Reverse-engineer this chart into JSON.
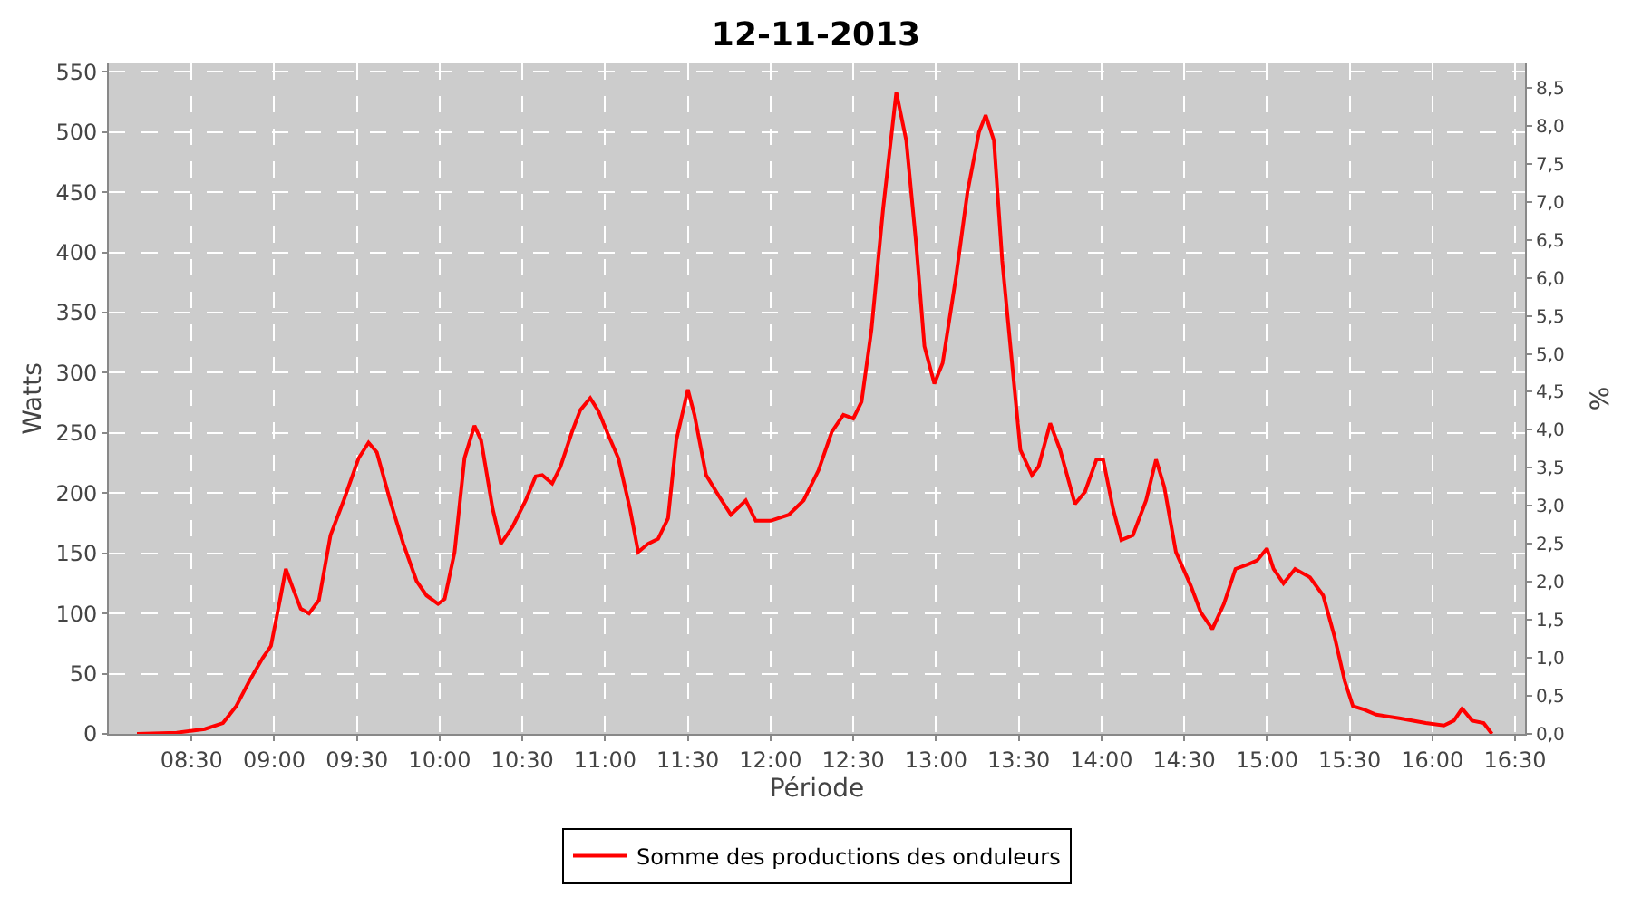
{
  "chart_data": {
    "type": "line",
    "title": "12-11-2013",
    "xlabel": "Période",
    "ylabel": "Watts",
    "y2label": "%",
    "x": [
      8.17,
      8.41,
      8.58,
      8.69,
      8.77,
      8.85,
      8.93,
      8.98,
      9.04,
      9.07,
      9.11,
      9.16,
      9.21,
      9.27,
      9.34,
      9.42,
      9.51,
      9.57,
      9.62,
      9.7,
      9.78,
      9.86,
      9.92,
      9.99,
      10.03,
      10.09,
      10.15,
      10.21,
      10.25,
      10.32,
      10.37,
      10.44,
      10.52,
      10.58,
      10.62,
      10.68,
      10.73,
      10.8,
      10.85,
      10.91,
      10.96,
      11.02,
      11.08,
      11.15,
      11.2,
      11.26,
      11.32,
      11.38,
      11.43,
      11.5,
      11.54,
      11.61,
      11.69,
      11.76,
      11.85,
      11.91,
      12.0,
      12.11,
      12.2,
      12.29,
      12.37,
      12.44,
      12.5,
      12.55,
      12.61,
      12.68,
      12.76,
      12.82,
      12.88,
      12.93,
      12.99,
      13.04,
      13.12,
      13.19,
      13.26,
      13.3,
      13.35,
      13.4,
      13.47,
      13.51,
      13.58,
      13.62,
      13.69,
      13.75,
      13.84,
      13.9,
      13.97,
      14.01,
      14.07,
      14.12,
      14.19,
      14.27,
      14.33,
      14.38,
      14.45,
      14.54,
      14.6,
      14.67,
      14.74,
      14.81,
      14.89,
      14.94,
      15.0,
      15.04,
      15.1,
      15.17,
      15.26,
      15.34,
      15.41,
      15.47,
      15.52,
      15.59,
      15.66,
      15.8,
      15.96,
      16.07,
      16.13,
      16.18,
      16.24,
      16.31,
      16.36
    ],
    "series": [
      {
        "name": "Somme des productions des onduleurs",
        "color": "#ff0000",
        "values": [
          0,
          1,
          4,
          9,
          23,
          44,
          63,
          73,
          115,
          137,
          122,
          104,
          100,
          111,
          165,
          194,
          229,
          242,
          234,
          194,
          158,
          127,
          115,
          108,
          112,
          151,
          229,
          256,
          244,
          187,
          158,
          172,
          194,
          214,
          215,
          208,
          222,
          251,
          269,
          279,
          268,
          248,
          229,
          187,
          151,
          158,
          162,
          179,
          244,
          286,
          265,
          215,
          197,
          182,
          194,
          177,
          177,
          182,
          194,
          219,
          251,
          265,
          262,
          276,
          336,
          436,
          533,
          493,
          407,
          322,
          291,
          308,
          379,
          450,
          500,
          514,
          493,
          393,
          293,
          236,
          215,
          222,
          258,
          236,
          191,
          201,
          228,
          228,
          187,
          161,
          165,
          194,
          228,
          205,
          151,
          123,
          101,
          87,
          108,
          137,
          141,
          144,
          154,
          137,
          125,
          137,
          130,
          115,
          80,
          44,
          23,
          20,
          16,
          13,
          9,
          7,
          11,
          21,
          11,
          9,
          0
        ]
      }
    ],
    "xlim": [
      8.0,
      16.56
    ],
    "xticks": [
      {
        "value": 8.5,
        "label": "08:30"
      },
      {
        "value": 9,
        "label": "09:00"
      },
      {
        "value": 9.5,
        "label": "09:30"
      },
      {
        "value": 10,
        "label": "10:00"
      },
      {
        "value": 10.5,
        "label": "10:30"
      },
      {
        "value": 11,
        "label": "11:00"
      },
      {
        "value": 11.5,
        "label": "11:30"
      },
      {
        "value": 12,
        "label": "12:00"
      },
      {
        "value": 12.5,
        "label": "12:30"
      },
      {
        "value": 13,
        "label": "13:00"
      },
      {
        "value": 13.5,
        "label": "13:30"
      },
      {
        "value": 14,
        "label": "14:00"
      },
      {
        "value": 14.5,
        "label": "14:30"
      },
      {
        "value": 15,
        "label": "15:00"
      },
      {
        "value": 15.5,
        "label": "15:30"
      },
      {
        "value": 16,
        "label": "16:00"
      },
      {
        "value": 16.5,
        "label": "16:30"
      }
    ],
    "ylim": [
      0,
      557
    ],
    "yticks": [
      0,
      50,
      100,
      150,
      200,
      250,
      300,
      350,
      400,
      450,
      500,
      550
    ],
    "y2lim": [
      0,
      8.82
    ],
    "y2ticks": [
      {
        "value": 0,
        "label": "0,0"
      },
      {
        "value": 0.5,
        "label": "0,5"
      },
      {
        "value": 1,
        "label": "1,0"
      },
      {
        "value": 1.5,
        "label": "1,5"
      },
      {
        "value": 2,
        "label": "2,0"
      },
      {
        "value": 2.5,
        "label": "2,5"
      },
      {
        "value": 3,
        "label": "3,0"
      },
      {
        "value": 3.5,
        "label": "3,5"
      },
      {
        "value": 4,
        "label": "4,0"
      },
      {
        "value": 4.5,
        "label": "4,5"
      },
      {
        "value": 5,
        "label": "5,0"
      },
      {
        "value": 5.5,
        "label": "5,5"
      },
      {
        "value": 6,
        "label": "6,0"
      },
      {
        "value": 6.5,
        "label": "6,5"
      },
      {
        "value": 7,
        "label": "7,0"
      },
      {
        "value": 7.5,
        "label": "7,5"
      },
      {
        "value": 8,
        "label": "8,0"
      },
      {
        "value": 8.5,
        "label": "8,5"
      }
    ],
    "grid": true,
    "legend": "bottom",
    "marker": "none",
    "line_style": "solid"
  }
}
